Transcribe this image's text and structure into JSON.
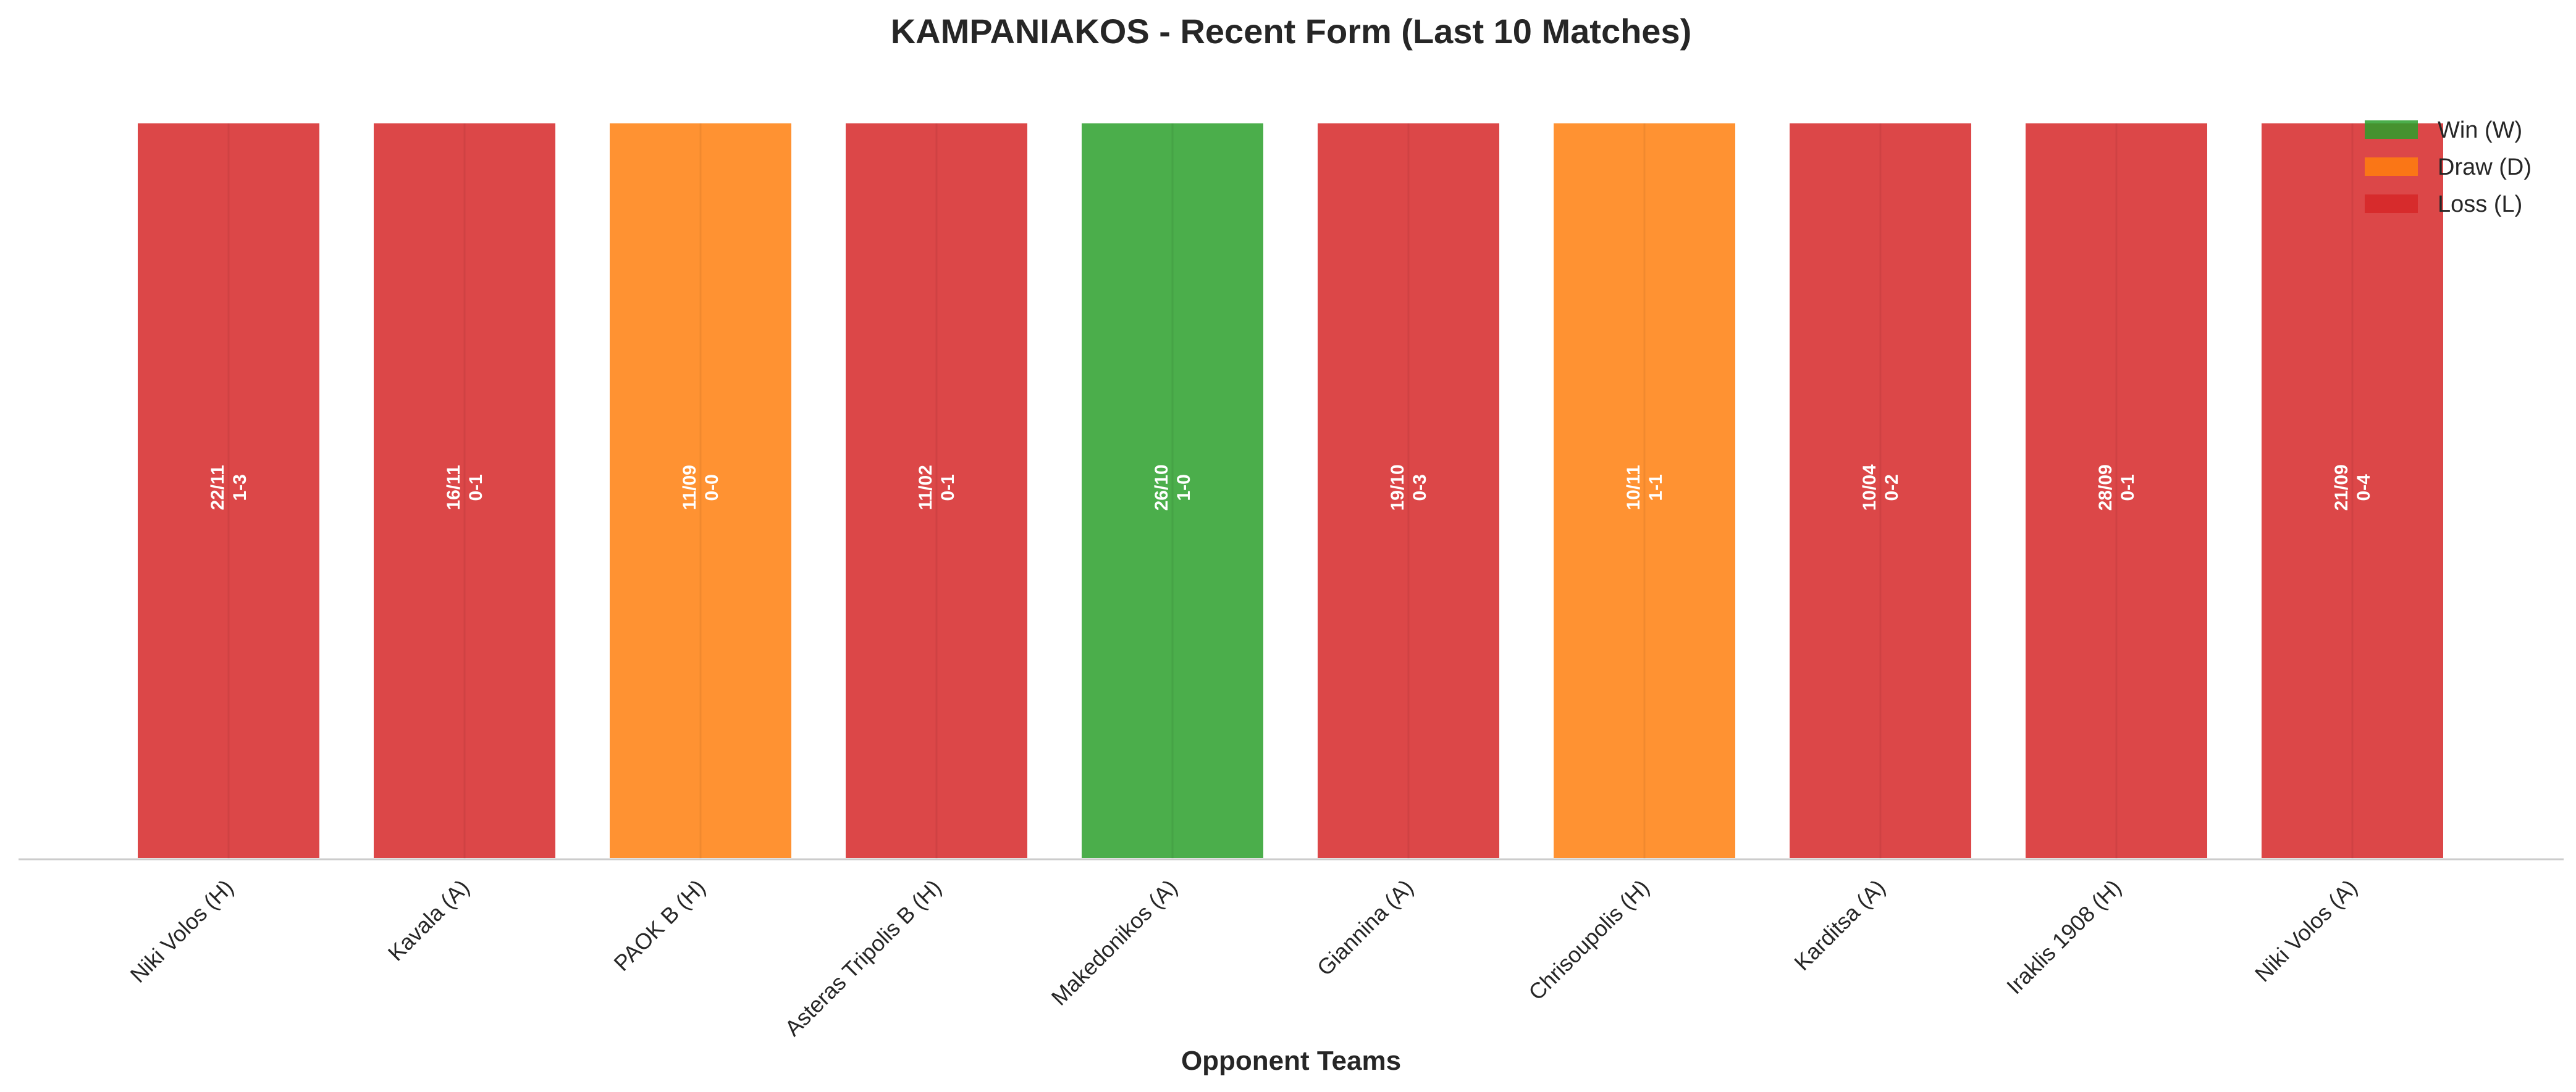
{
  "chart_data": {
    "type": "bar",
    "title": "KAMPANIAKOS - Recent Form (Last 10 Matches)",
    "xlabel": "Opponent Teams",
    "ylabel": "",
    "grid": false,
    "legend_position": "top-right",
    "categories": [
      "Niki Volos (H)",
      "Kavala (A)",
      "PAOK B (H)",
      "Asteras Tripolis B (H)",
      "Makedonikos (A)",
      "Giannina (A)",
      "Chrisoupolis (H)",
      "Karditsa (A)",
      "Iraklis 1908 (H)",
      "Niki Volos (A)"
    ],
    "values": [
      1,
      1,
      1,
      1,
      1,
      1,
      1,
      1,
      1,
      1
    ],
    "ylim": [
      0,
      1.05
    ],
    "results": [
      "L",
      "L",
      "D",
      "L",
      "W",
      "L",
      "D",
      "L",
      "L",
      "L"
    ],
    "dates": [
      "22/11",
      "16/11",
      "11/09",
      "11/02",
      "26/10",
      "19/10",
      "10/11",
      "10/04",
      "28/09",
      "21/09"
    ],
    "scores": [
      "1-3",
      "0-1",
      "0-0",
      "0-1",
      "1-0",
      "0-3",
      "1-1",
      "0-2",
      "0-1",
      "0-4"
    ],
    "legend": [
      {
        "key": "W",
        "label": "Win (W)"
      },
      {
        "key": "D",
        "label": "Draw (D)"
      },
      {
        "key": "L",
        "label": "Loss (L)"
      }
    ],
    "colors": {
      "W": "#2ca02c",
      "D": "#ff7f0e",
      "L": "#d62728"
    }
  }
}
